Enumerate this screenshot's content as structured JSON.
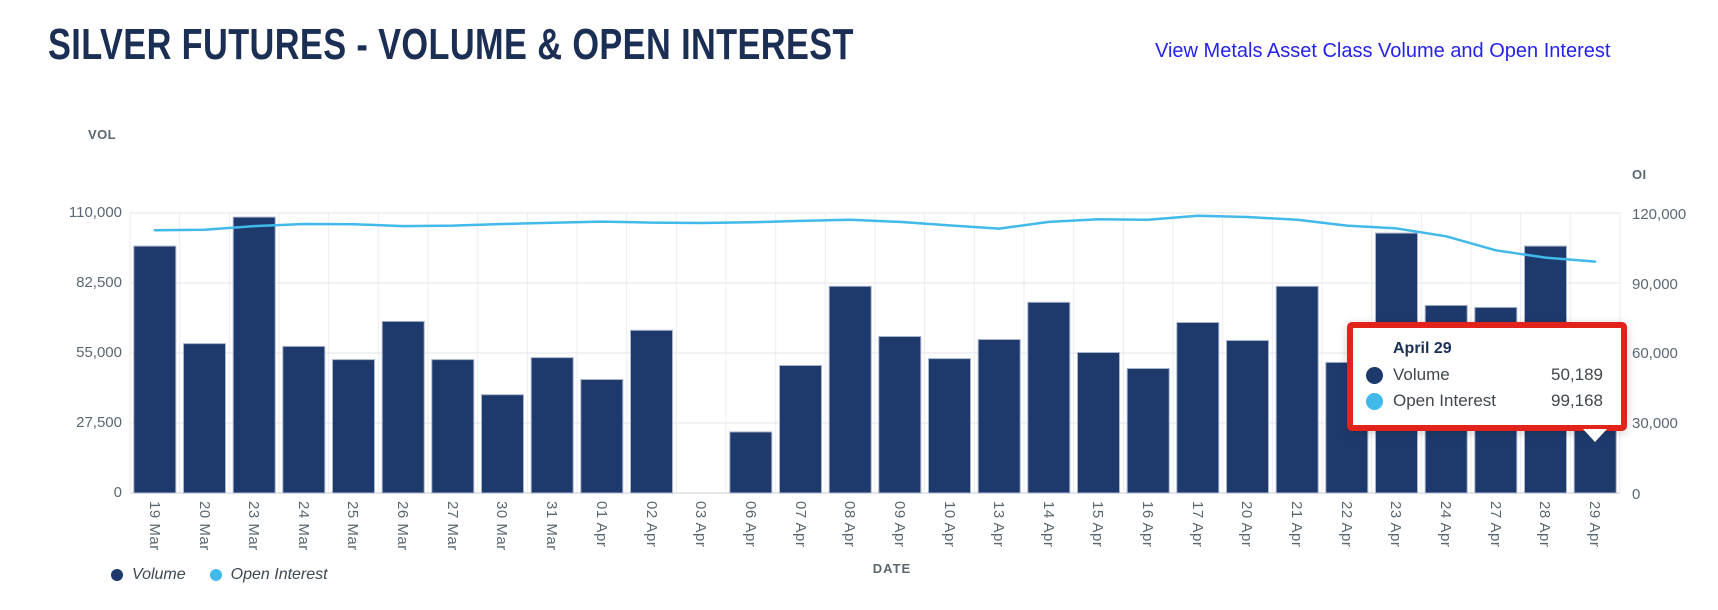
{
  "header": {
    "title": "SILVER FUTURES - VOLUME & OPEN INTEREST",
    "link_label": "View Metals Asset Class Volume and Open Interest",
    "link_color": "#2522ee"
  },
  "chart_data": {
    "type": "bar+line combo",
    "categories": [
      "19 Mar",
      "20 Mar",
      "23 Mar",
      "24 Mar",
      "25 Mar",
      "26 Mar",
      "27 Mar",
      "30 Mar",
      "31 Mar",
      "01 Apr",
      "02 Apr",
      "03 Apr",
      "06 Apr",
      "07 Apr",
      "08 Apr",
      "09 Apr",
      "10 Apr",
      "13 Apr",
      "14 Apr",
      "15 Apr",
      "16 Apr",
      "17 Apr",
      "20 Apr",
      "21 Apr",
      "22 Apr",
      "23 Apr",
      "24 Apr",
      "27 Apr",
      "28 Apr",
      "29 Apr"
    ],
    "series": [
      {
        "name": "Volume",
        "type": "bar",
        "axis": "left",
        "color": "#1e3a6d",
        "values": [
          97000,
          58700,
          108400,
          57600,
          52400,
          67400,
          52400,
          38600,
          53200,
          44600,
          63900,
          0,
          24000,
          50100,
          81200,
          61500,
          52800,
          60300,
          74900,
          55200,
          48900,
          67000,
          59900,
          81200,
          51300,
          102100,
          73700,
          72900,
          97000,
          50189
        ]
      },
      {
        "name": "Open Interest",
        "type": "line",
        "axis": "right",
        "color": "#41b9ea",
        "values": [
          112600,
          112800,
          114400,
          115300,
          115200,
          114400,
          114600,
          115300,
          115800,
          116300,
          115900,
          115700,
          116000,
          116600,
          117100,
          116200,
          114700,
          113300,
          116200,
          117300,
          117100,
          118800,
          118300,
          117100,
          114600,
          113400,
          110000,
          104000,
          100900,
          99168
        ]
      }
    ],
    "left_axis": {
      "label": "VOL",
      "max": 110000,
      "ticks": [
        "110,000",
        "82,500",
        "55,000",
        "27,500",
        "0"
      ]
    },
    "right_axis": {
      "label": "OI",
      "max": 120000,
      "ticks": [
        "120,000",
        "90,000",
        "60,000",
        "30,000",
        "0"
      ]
    },
    "x_axis": {
      "label": "DATE"
    },
    "legend": [
      {
        "label": "Volume",
        "color": "#1e3a6d"
      },
      {
        "label": "Open Interest",
        "color": "#41b9ea"
      }
    ],
    "grid": "horizontal and vertical light gray gridlines",
    "legend_position": "bottom-left"
  },
  "tooltip": {
    "title": "April 29",
    "border_color": "#e2231b",
    "rows": [
      {
        "label": "Volume",
        "value": "50,189",
        "color": "#1e3a6d"
      },
      {
        "label": "Open Interest",
        "value": "99,168",
        "color": "#41b9ea"
      }
    ]
  }
}
